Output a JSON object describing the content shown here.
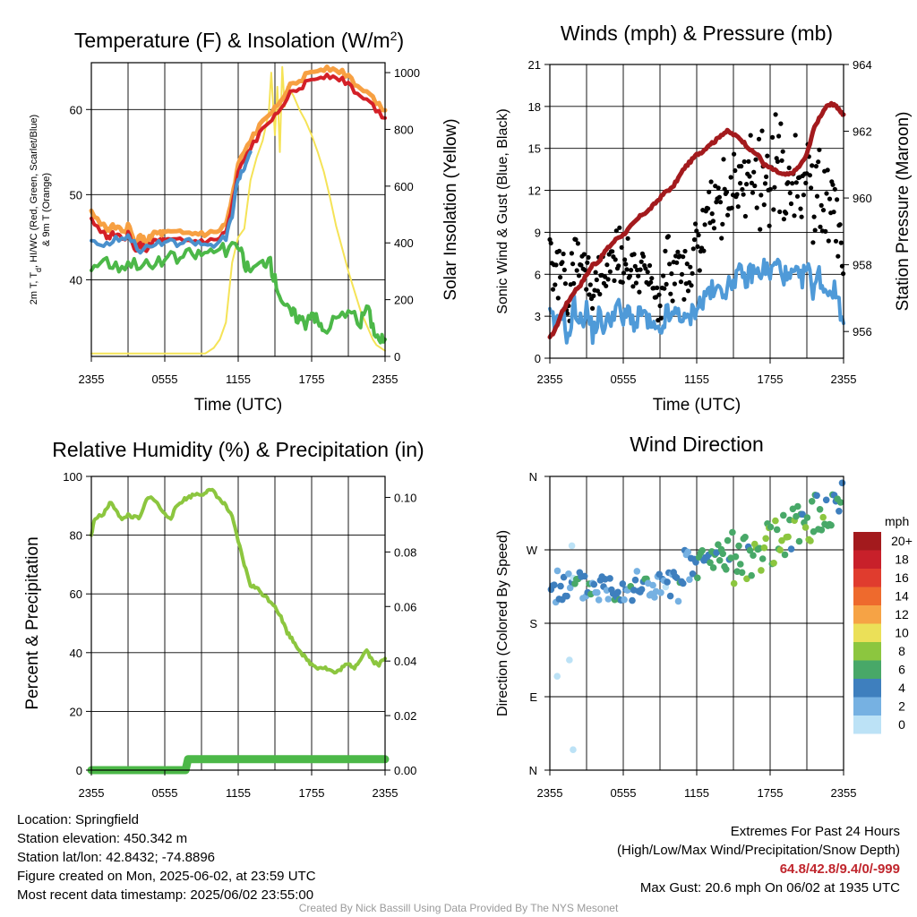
{
  "colors": {
    "temp_red": "#d42027",
    "temp_orange": "#f7a042",
    "dew_green": "#4cb848",
    "windchill_blue": "#4a90cc",
    "insolation_yellow": "#f5e357",
    "wind_blue": "#4f9ad8",
    "gust_black": "#000000",
    "pressure_maroon": "#a31a1d",
    "rh_green": "#8cc63f",
    "precip_green": "#4cb848",
    "extreme_red": "#c0262d"
  },
  "time_ticks": [
    "2355",
    "0555",
    "1155",
    "1755",
    "2355"
  ],
  "chart_data": [
    {
      "id": "temperature",
      "type": "line",
      "title": "Temperature (F) & Insolation (W/m²)",
      "title_main": "Temperature (F) & Insolation (W/m",
      "title_sup": "2",
      "title_end": ")",
      "xlabel": "Time (UTC)",
      "ylabel_line1": "2m T, T",
      "ylabel_sub": "d",
      "ylabel_line1_end": ", HI/WC (Red, Green, Scarlet/Blue)",
      "ylabel_line2": "& 9m T (Orange)",
      "y2label": "Solar Insolation (Yellow)",
      "x_hours_range": [
        0,
        24
      ],
      "ylim": [
        31,
        65.5
      ],
      "yticks": [
        "40",
        "50",
        "60"
      ],
      "y2lim": [
        0,
        1035
      ],
      "y2ticks": [
        "0",
        "200",
        "400",
        "600",
        "800",
        "1000"
      ],
      "series": [
        {
          "key": "t9m",
          "color": "#f7a042",
          "width": 5,
          "offset": 0.4,
          "x": [
            0,
            1,
            1.5,
            2,
            2.5,
            3,
            3.5,
            4,
            4.5,
            5,
            5.5,
            6,
            7,
            8,
            9,
            10,
            11,
            11.5,
            12,
            13,
            14,
            15,
            16,
            17,
            18,
            19,
            20,
            21,
            22,
            23,
            24
          ],
          "y": [
            47.5,
            46,
            45.5,
            46,
            45,
            46,
            44,
            44.5,
            44,
            45,
            45,
            45,
            45,
            45,
            45,
            45,
            46,
            49,
            53,
            56,
            58,
            60,
            62,
            63,
            64,
            64.5,
            64.5,
            63.5,
            62,
            61,
            59.5
          ]
        },
        {
          "key": "t2m",
          "color": "#d42027",
          "width": 4,
          "x": [
            0,
            1,
            1.5,
            2,
            2.5,
            3,
            3.5,
            4,
            4.5,
            5,
            5.5,
            6,
            7,
            8,
            9,
            10,
            11,
            11.5,
            12,
            13,
            14,
            15,
            16,
            17,
            18,
            19,
            20,
            21,
            22,
            23,
            24
          ],
          "y": [
            47,
            45.5,
            45,
            45.5,
            44.5,
            45.5,
            43.5,
            44,
            43.5,
            44.5,
            44.5,
            44.5,
            44.5,
            44.5,
            44.5,
            44.5,
            45.5,
            48.5,
            52.5,
            55.5,
            57.5,
            59.5,
            61.5,
            62.5,
            63.5,
            64,
            64,
            63,
            61.5,
            60.5,
            59
          ]
        },
        {
          "key": "wc",
          "color": "#4a90cc",
          "width": 4,
          "x": [
            0,
            1,
            2,
            3,
            4,
            5,
            6,
            7,
            8,
            9,
            10,
            11,
            11.5,
            12,
            12.5,
            13
          ],
          "y": [
            44.8,
            44,
            44.8,
            45.2,
            43.5,
            44,
            44.5,
            44.2,
            44.5,
            44.2,
            44,
            45,
            47.5,
            52,
            53,
            55
          ]
        },
        {
          "key": "td",
          "color": "#4cb848",
          "width": 4,
          "x": [
            0,
            1,
            2,
            3,
            4,
            5,
            6,
            7,
            8,
            9,
            10,
            11,
            12,
            12.5,
            13,
            14,
            14.5,
            15,
            15.5,
            16,
            16.5,
            17,
            17.5,
            18,
            18.5,
            19,
            20,
            21,
            22,
            22.5,
            23,
            23.5,
            24
          ],
          "y": [
            41.5,
            42.5,
            41.5,
            42,
            42,
            41.5,
            42.5,
            42.5,
            43,
            43,
            43.5,
            43.5,
            44,
            42,
            41,
            42,
            42.5,
            40,
            38,
            36.5,
            36,
            35.5,
            35,
            36.5,
            35,
            34,
            35.5,
            36,
            35,
            37,
            34.5,
            33,
            33
          ]
        },
        {
          "key": "sol",
          "color": "#f5e357",
          "width": 2,
          "axis": "y2",
          "x": [
            0,
            9.3,
            10,
            10.5,
            11,
            11.5,
            12,
            12.5,
            13,
            13.5,
            14,
            14.5,
            14.7,
            15,
            15.2,
            15.4,
            15.6,
            15.8,
            16,
            16.5,
            17,
            17.5,
            18,
            18.5,
            19,
            19.5,
            20,
            20.5,
            21,
            21.5,
            22,
            22.5,
            23,
            23.3,
            24
          ],
          "y": [
            10,
            10,
            30,
            60,
            120,
            330,
            420,
            450,
            620,
            700,
            760,
            860,
            1000,
            780,
            950,
            720,
            1020,
            880,
            950,
            920,
            870,
            830,
            780,
            720,
            650,
            560,
            460,
            380,
            300,
            230,
            160,
            110,
            60,
            40,
            20
          ]
        }
      ]
    },
    {
      "id": "winds",
      "type": "line",
      "title": "Winds (mph) & Pressure (mb)",
      "xlabel": "Time (UTC)",
      "ylabel": "Sonic Wind & Gust (Blue, Black)",
      "y2label": "Station Pressure (Maroon)",
      "x_hours_range": [
        0,
        24
      ],
      "ylim": [
        0,
        21
      ],
      "yticks": [
        "0",
        "3",
        "6",
        "9",
        "12",
        "15",
        "18",
        "21"
      ],
      "y2lim": [
        955.2,
        964
      ],
      "y2ticks": [
        "956",
        "958",
        "960",
        "962",
        "964"
      ],
      "series": [
        {
          "key": "wind",
          "color": "#4f9ad8",
          "width": 4,
          "x": [
            0,
            0.5,
            1,
            1.5,
            2,
            2.5,
            3,
            3.5,
            4,
            4.5,
            5,
            5.5,
            6,
            6.5,
            7,
            7.5,
            8,
            8.5,
            9,
            9.5,
            10,
            10.5,
            11,
            11.5,
            12,
            12.5,
            13,
            13.5,
            14,
            14.5,
            15,
            15.5,
            16,
            16.5,
            17,
            17.5,
            18,
            18.5,
            19,
            19.5,
            20,
            20.5,
            21,
            21.5,
            22,
            22.5,
            23,
            23.5,
            24
          ],
          "y": [
            3,
            2.2,
            3.5,
            1.2,
            3.8,
            2.5,
            3.5,
            1.8,
            3,
            2.2,
            3,
            3.8,
            2.6,
            3.5,
            2.2,
            3.5,
            2.5,
            2,
            1.5,
            3.2,
            2.8,
            3.5,
            2.5,
            3,
            3.8,
            4,
            5,
            4.5,
            5.2,
            4.8,
            5.8,
            6,
            5.5,
            6.2,
            6,
            6.5,
            6,
            6.8,
            6.2,
            5.5,
            6,
            5.5,
            6.5,
            5,
            6,
            4.8,
            5,
            4.5,
            2.5
          ]
        },
        {
          "key": "pressure",
          "color": "#a31a1d",
          "width": 5,
          "axis": "y2",
          "x": [
            0,
            0.5,
            1,
            1.5,
            2,
            2.5,
            3,
            3.5,
            4,
            4.5,
            5,
            5.5,
            6,
            6.5,
            7,
            7.5,
            8,
            8.5,
            9,
            9.5,
            10,
            10.5,
            11,
            11.5,
            12,
            12.5,
            13,
            13.5,
            14,
            14.5,
            15,
            15.5,
            16,
            16.5,
            17,
            17.5,
            18,
            18.5,
            19,
            19.5,
            20,
            20.5,
            21,
            21.5,
            22,
            22.5,
            23,
            23.3,
            23.7,
            24
          ],
          "y": [
            955.8,
            956.1,
            956.6,
            956.9,
            957.2,
            957.4,
            957.7,
            958.0,
            958.1,
            958.4,
            958.6,
            958.8,
            958.9,
            959.1,
            959.3,
            959.5,
            959.6,
            959.8,
            960.0,
            960.2,
            960.3,
            960.6,
            960.9,
            961.1,
            961.3,
            961.4,
            961.6,
            961.7,
            961.9,
            962.0,
            961.9,
            961.8,
            961.6,
            961.4,
            961.3,
            961.0,
            960.9,
            960.8,
            960.7,
            960.7,
            960.8,
            961.0,
            961.3,
            962.0,
            962.4,
            962.7,
            962.8,
            962.8,
            962.6,
            962.5
          ]
        }
      ]
    },
    {
      "id": "humidity",
      "type": "line",
      "title": "Relative Humidity (%) & Precipitation (in)",
      "xlabel": "",
      "ylabel": "Percent & Precipitation",
      "x_hours_range": [
        0,
        24
      ],
      "ylim": [
        0,
        100
      ],
      "yticks": [
        "0",
        "20",
        "40",
        "60",
        "80",
        "100"
      ],
      "y2lim": [
        0,
        0.1077
      ],
      "y2ticks": [
        "0.00",
        "0.02",
        "0.04",
        "0.06",
        "0.08",
        "0.10"
      ],
      "series": [
        {
          "key": "rh",
          "color": "#8cc63f",
          "width": 4,
          "x": [
            0,
            0.3,
            1,
            1.5,
            2,
            2.5,
            3,
            3.5,
            4,
            4.5,
            5,
            5.5,
            6,
            6.5,
            7,
            7.5,
            8,
            8.5,
            9,
            9.5,
            10,
            10.5,
            11,
            11.5,
            12,
            12.5,
            13,
            13.5,
            14,
            14.5,
            15,
            15.5,
            16,
            16.5,
            17,
            17.5,
            18,
            18.5,
            19,
            19.5,
            20,
            20.5,
            21,
            21.5,
            22,
            22.5,
            23,
            23.5,
            24
          ],
          "y": [
            80,
            86,
            87,
            91,
            89,
            85,
            87,
            86,
            86,
            92,
            93,
            90,
            87,
            86,
            90,
            92,
            93,
            94,
            94,
            95,
            95,
            92,
            90,
            86,
            78,
            70,
            63,
            62,
            60,
            58,
            56,
            52,
            47,
            44,
            41,
            38,
            36,
            35,
            35,
            34,
            33,
            35,
            36,
            35,
            38,
            41,
            37,
            36,
            38
          ]
        },
        {
          "key": "precip",
          "color": "#4cb848",
          "width": 9,
          "axis": "y2",
          "x": [
            0,
            7.7,
            7.9,
            24
          ],
          "y": [
            0,
            0,
            0.004,
            0.004
          ]
        }
      ]
    },
    {
      "id": "direction",
      "type": "scatter",
      "title": "Wind Direction",
      "ylabel": "Direction (Colored By Speed)",
      "x_hours_range": [
        0,
        24
      ],
      "yticks": [
        "N",
        "E",
        "S",
        "W",
        "N"
      ],
      "legend_title": "mph",
      "legend_labels": [
        "20+",
        "18",
        "16",
        "14",
        "12",
        "10",
        "8",
        "6",
        "4",
        "2",
        "0"
      ],
      "legend_colors": [
        "#a31a1d",
        "#c8202a",
        "#e03c2e",
        "#ee6a2d",
        "#f6a345",
        "#ebe058",
        "#8cc63f",
        "#48a868",
        "#3e7fbe",
        "#76b1e2",
        "#bce2f6"
      ]
    }
  ],
  "info": {
    "location": "Location: Springfield",
    "elevation": "Station elevation: 450.342 m",
    "latlon": "Station lat/lon: 42.8432; -74.8896",
    "created": "Figure created on Mon, 2025-06-02, at 23:59 UTC",
    "recent": "Most recent data timestamp: 2025/06/02 23:55:00"
  },
  "extremes": {
    "title": "Extremes For Past 24 Hours",
    "subtitle": "(High/Low/Max Wind/Precipitation/Snow Depth)",
    "values": "64.8/42.8/9.4/0/-999",
    "max_gust": "Max Gust: 20.6 mph On 06/02 at 1935 UTC"
  },
  "credit": "Created By Nick Bassill Using Data Provided By The NYS Mesonet"
}
